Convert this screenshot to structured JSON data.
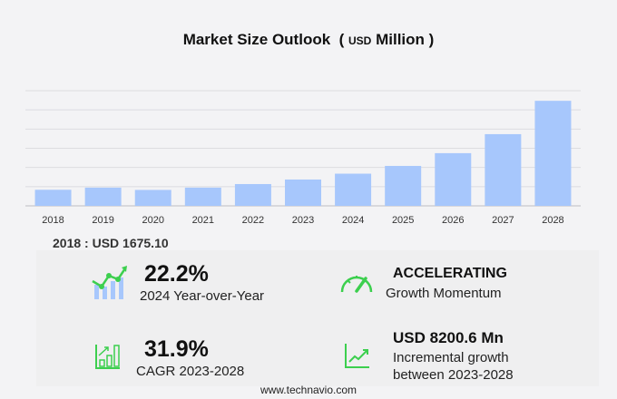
{
  "chart_data": {
    "type": "bar",
    "title": "Market Size Outlook",
    "unit_prefix": "USD",
    "unit_suffix": "Million",
    "categories": [
      "2018",
      "2019",
      "2020",
      "2021",
      "2022",
      "2023",
      "2024",
      "2025",
      "2026",
      "2027",
      "2028"
    ],
    "values": [
      1675.1,
      1900,
      1660,
      1900,
      2270,
      2743,
      3352,
      4160,
      5490,
      7470,
      10944
    ],
    "ylim": [
      0,
      12000
    ],
    "grid": true,
    "bar_color": "#a7c7fc"
  },
  "base_label": "2018 : USD  1675.10",
  "stats": {
    "yoy_value": "22.2%",
    "yoy_label": "2024 Year-over-Year",
    "momentum_value": "ACCELERATING",
    "momentum_label": "Growth Momentum",
    "cagr_value": "31.9%",
    "cagr_label": "CAGR 2023-2028",
    "incr_value": "USD 8200.6 Mn",
    "incr_label1": "Incremental growth",
    "incr_label2": "between 2023-2028"
  },
  "accent_color": "#3ccf4e",
  "footer": "www.technavio.com"
}
